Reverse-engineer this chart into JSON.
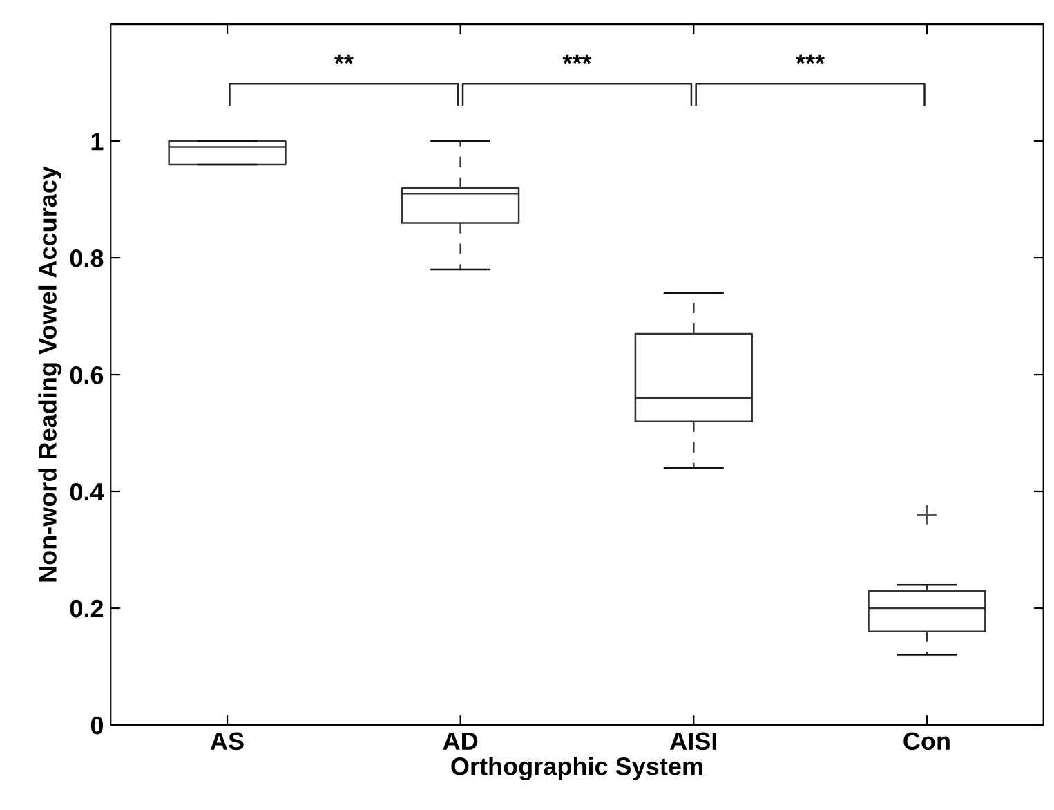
{
  "chart_data": {
    "type": "box",
    "xlabel": "Orthographic System",
    "ylabel": "Non-word Reading Vowel Accuracy",
    "categories": [
      "AS",
      "AD",
      "AISI",
      "Con"
    ],
    "boxes": [
      {
        "low": 0.96,
        "q1": 0.96,
        "median": 0.99,
        "q3": 1.0,
        "high": 1.0
      },
      {
        "low": 0.78,
        "q1": 0.86,
        "median": 0.91,
        "q3": 0.92,
        "high": 1.0
      },
      {
        "low": 0.44,
        "q1": 0.52,
        "median": 0.56,
        "q3": 0.67,
        "high": 0.74
      },
      {
        "low": 0.12,
        "q1": 0.16,
        "median": 0.2,
        "q3": 0.23,
        "high": 0.24,
        "outliers": [
          0.36
        ]
      }
    ],
    "ylim": [
      0,
      1.2
    ],
    "yticks": [
      0,
      0.2,
      0.4,
      0.6,
      0.8,
      1
    ],
    "annotations": [
      "**",
      "***",
      "***"
    ],
    "grid": false,
    "legend": false
  }
}
